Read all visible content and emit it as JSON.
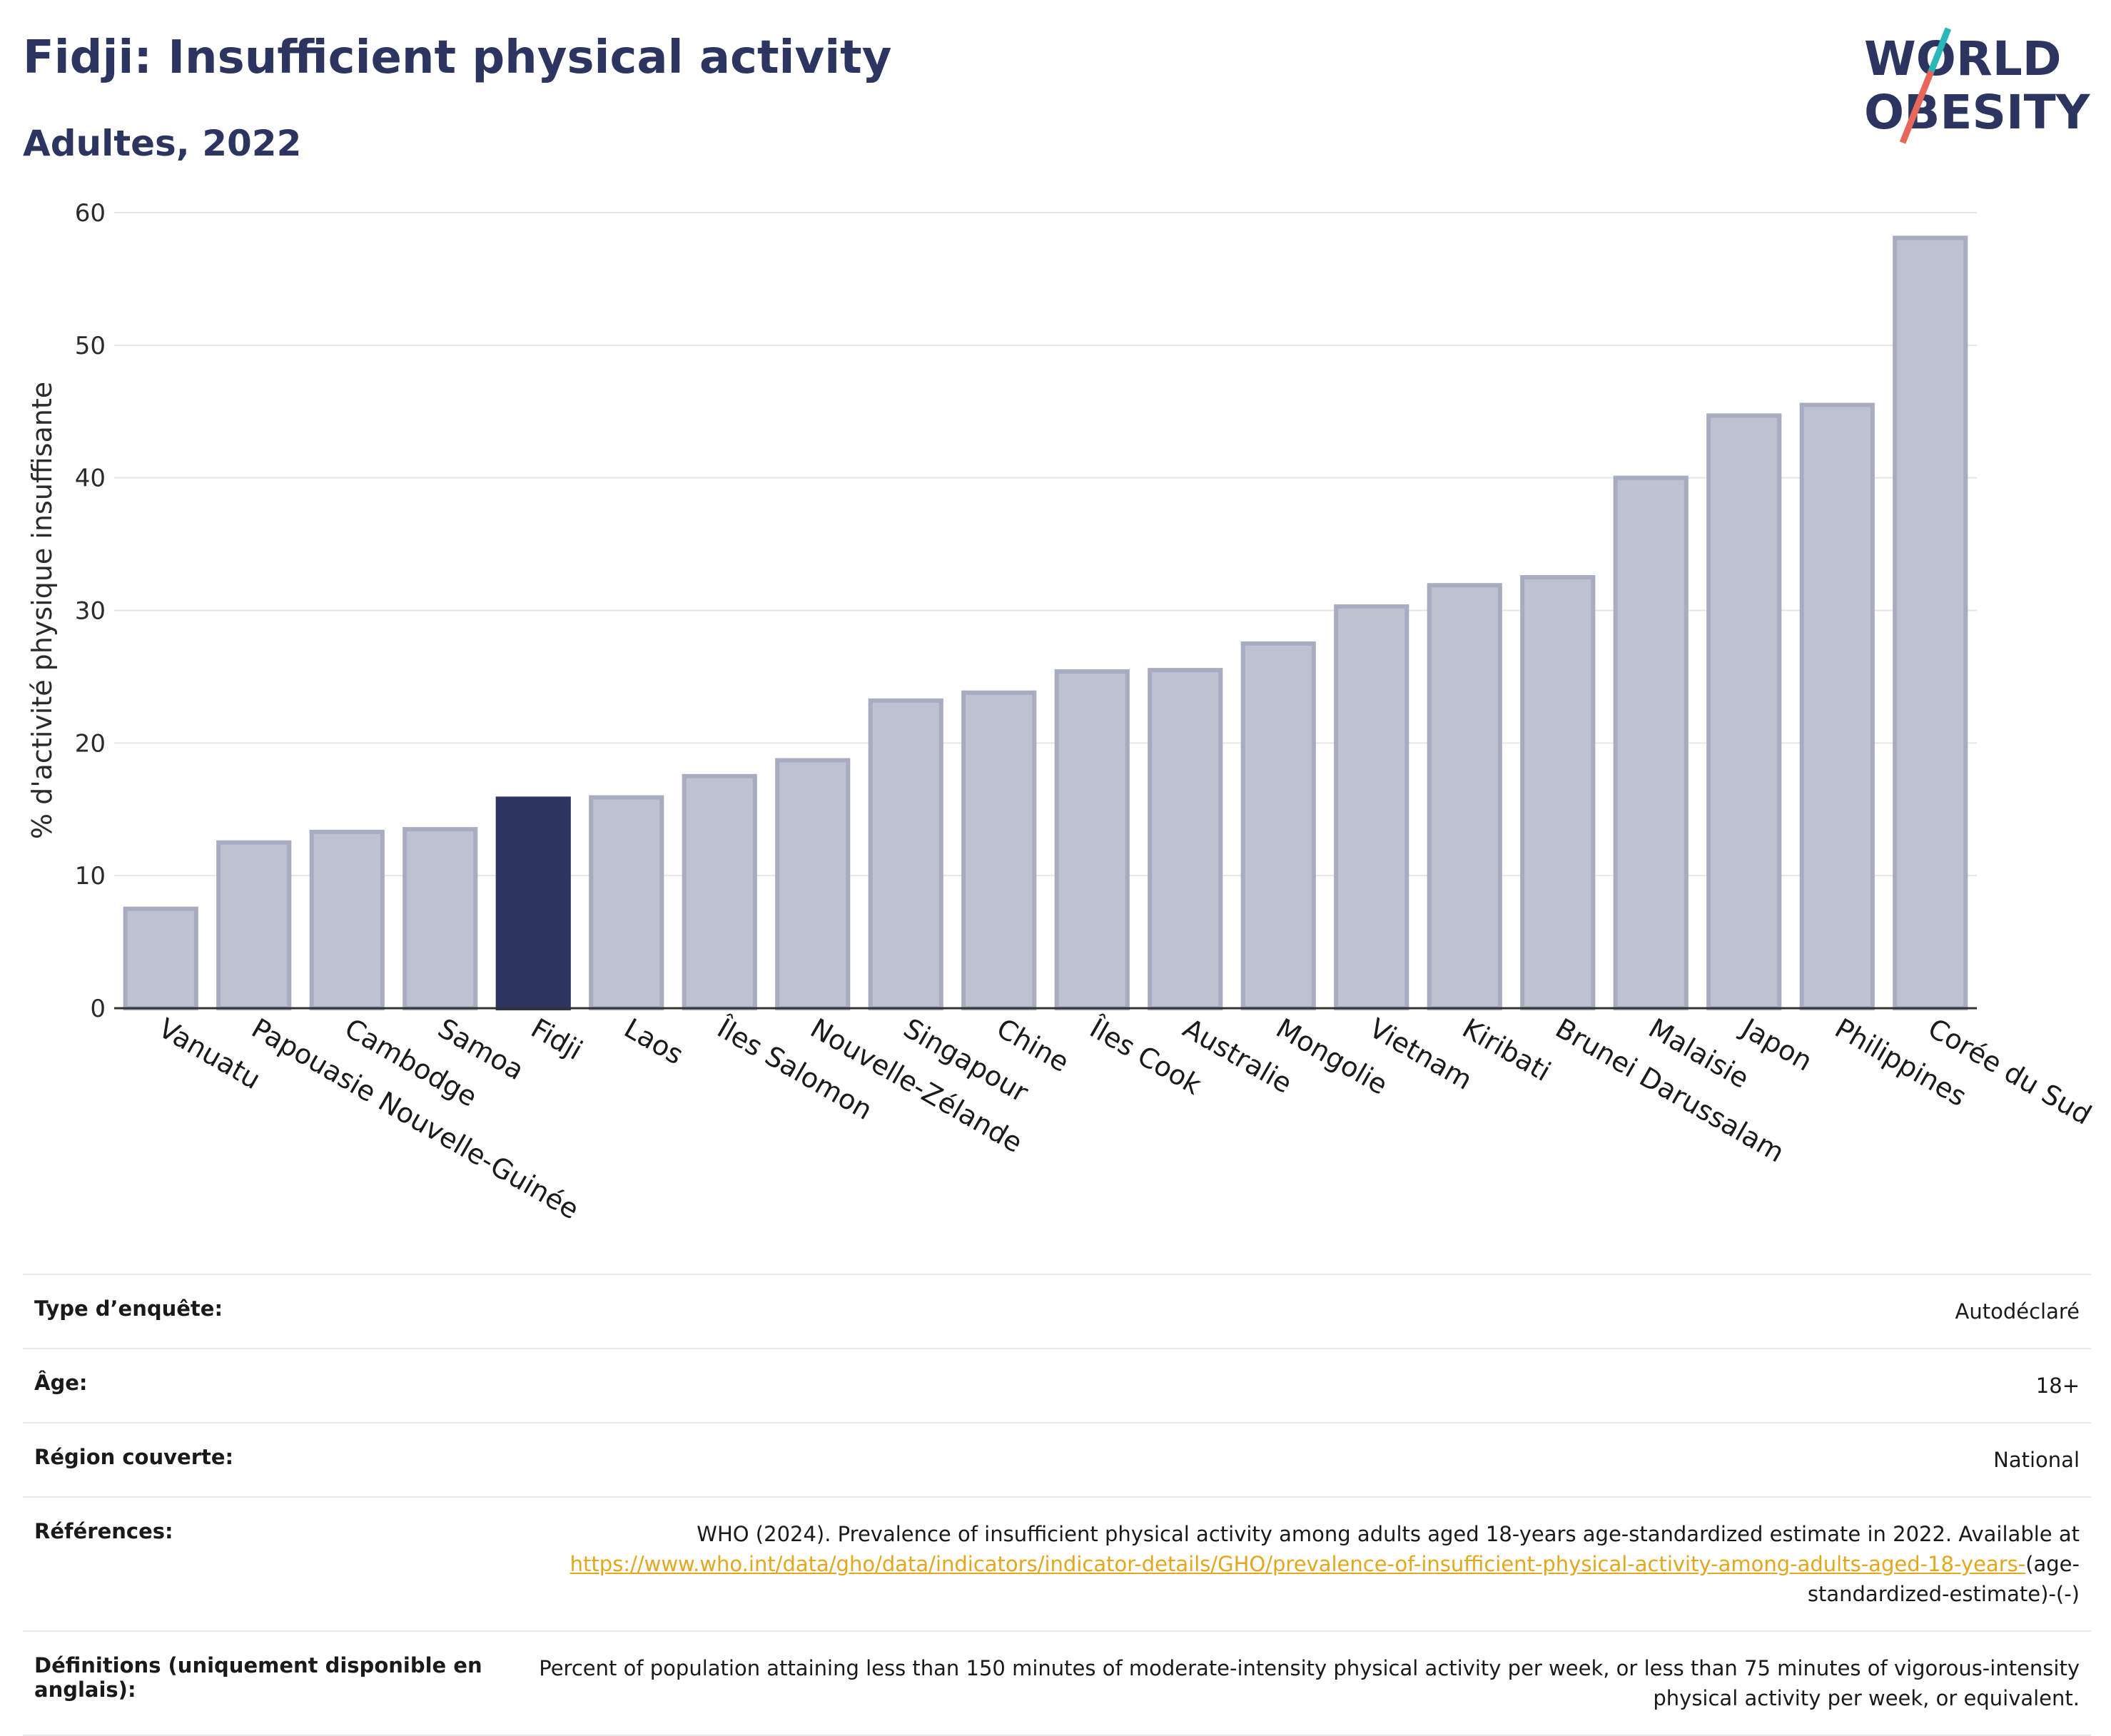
{
  "header": {
    "title": "Fidji: Insufficient physical activity",
    "subtitle": "Adultes, 2022"
  },
  "logo": {
    "line1": "WORLD",
    "line2": "OBESITY",
    "slash_colors": [
      "#2ab7b7",
      "#e8675a"
    ]
  },
  "colors": {
    "highlight": "#2b3560",
    "bar_fill": "#bec1d0",
    "bar_stroke": "#a8acc1",
    "text": "#2b3560",
    "link": "#e3a71d"
  },
  "chart_data": {
    "type": "bar",
    "ylabel": "% d'activité physique insuffisante",
    "ylim": [
      0,
      60
    ],
    "yticks": [
      0,
      10,
      20,
      30,
      40,
      50,
      60
    ],
    "grid": true,
    "highlight": "Fidji",
    "categories": [
      "Vanuatu",
      "Papouasie Nouvelle-Guinée",
      "Cambodge",
      "Samoa",
      "Fidji",
      "Laos",
      "Îles Salomon",
      "Nouvelle-Zélande",
      "Singapour",
      "Chine",
      "Îles Cook",
      "Australie",
      "Mongolie",
      "Vietnam",
      "Kiribati",
      "Brunei Darussalam",
      "Malaisie",
      "Japon",
      "Philippines",
      "Corée du Sud"
    ],
    "values": [
      7.5,
      12.5,
      13.3,
      13.5,
      15.8,
      15.9,
      17.5,
      18.7,
      23.2,
      23.8,
      25.4,
      25.5,
      27.5,
      30.3,
      31.9,
      32.5,
      40.0,
      44.7,
      45.5,
      58.1
    ]
  },
  "meta": {
    "rows": [
      {
        "label": "Type d’enquête:",
        "value": "Autodéclaré"
      },
      {
        "label": "Âge:",
        "value": "18+"
      },
      {
        "label": "Région couverte:",
        "value": "National"
      }
    ],
    "references": {
      "label": "Références:",
      "text": "WHO (2024). Prevalence of insufficient physical activity among adults aged 18-years age-standardized estimate in 2022. Available at",
      "link": "https://www.who.int/data/gho/data/indicators/indicator-details/GHO/prevalence-of-insufficient-physical-activity-among-adults-aged-18-years-",
      "suffix": "(age-standardized-estimate)-(-)"
    },
    "definitions": {
      "label": "Définitions (uniquement disponible en anglais):",
      "value": "Percent of population attaining less than 150 minutes of moderate-intensity physical activity per week, or less than 75 minutes of vigorous-intensity physical activity per week, or equivalent."
    }
  }
}
